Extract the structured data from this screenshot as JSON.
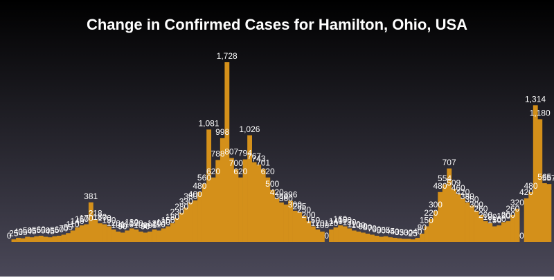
{
  "chart_data": {
    "type": "bar",
    "title": "Change in Confirmed Cases for Hamilton, Ohio, USA",
    "color": "#d4901a",
    "ylim": [
      0,
      1728
    ],
    "values": [
      0,
      25,
      40,
      35,
      50,
      45,
      55,
      60,
      50,
      45,
      55,
      60,
      70,
      85,
      110,
      140,
      160,
      170,
      381,
      218,
      180,
      170,
      150,
      120,
      100,
      90,
      110,
      130,
      120,
      100,
      90,
      100,
      120,
      110,
      130,
      150,
      180,
      230,
      280,
      330,
      380,
      400,
      480,
      560,
      1081,
      620,
      788,
      998,
      1728,
      807,
      700,
      620,
      794,
      1026,
      767,
      743,
      701,
      620,
      500,
      420,
      380,
      360,
      396,
      300,
      285,
      250,
      200,
      150,
      120,
      100,
      0,
      120,
      140,
      160,
      150,
      130,
      110,
      100,
      90,
      80,
      70,
      60,
      50,
      55,
      45,
      40,
      35,
      30,
      30,
      25,
      40,
      80,
      150,
      220,
      300,
      480,
      554,
      707,
      509,
      460,
      420,
      380,
      350,
      300,
      260,
      200,
      180,
      150,
      160,
      190,
      200,
      260,
      320,
      0,
      420,
      480,
      1314,
      1180,
      565,
      557
    ],
    "value_labels": [
      "0",
      "25",
      "40",
      "35",
      "50",
      "45",
      "55",
      "60",
      "50",
      "45",
      "55",
      "60",
      "70",
      "85",
      "110",
      "140",
      "160",
      "170",
      "381",
      "218",
      "180",
      "170",
      "150",
      "120",
      "100",
      "90",
      "110",
      "130",
      "120",
      "100",
      "90",
      "100",
      "120",
      "110",
      "130",
      "150",
      "180",
      "230",
      "280",
      "330",
      "380",
      "400",
      "480",
      "560",
      "1,081",
      "620",
      "788",
      "998",
      "1,728",
      "807",
      "700",
      "620",
      "794",
      "1,026",
      "767",
      "743",
      "701",
      "620",
      "500",
      "420",
      "380",
      "360",
      "396",
      "300",
      "285",
      "250",
      "200",
      "150",
      "120",
      "100",
      "0",
      "120",
      "140",
      "160",
      "150",
      "130",
      "110",
      "100",
      "90",
      "80",
      "70",
      "60",
      "50",
      "55",
      "45",
      "40",
      "35",
      "30",
      "30",
      "25",
      "40",
      "80",
      "150",
      "220",
      "300",
      "480",
      "554",
      "707",
      "509",
      "460",
      "420",
      "380",
      "350",
      "300",
      "260",
      "200",
      "180",
      "150",
      "160",
      "190",
      "200",
      "260",
      "320",
      "0",
      "420",
      "480",
      "1,314",
      "1,180",
      "565",
      "557"
    ]
  }
}
